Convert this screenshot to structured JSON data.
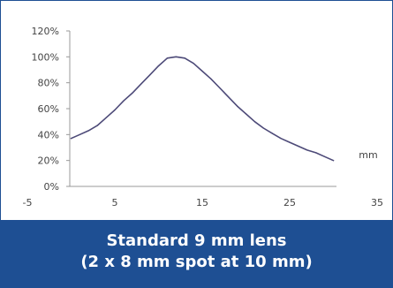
{
  "chart_data": {
    "type": "line",
    "title": "",
    "xlabel": "mm",
    "ylabel": "",
    "x_ticks": [
      "-5",
      "5",
      "15",
      "25",
      "35"
    ],
    "y_ticks": [
      "0%",
      "20%",
      "40%",
      "60%",
      "80%",
      "100%",
      "120%"
    ],
    "xlim": [
      -5,
      35
    ],
    "ylim": [
      0,
      120
    ],
    "grid": false,
    "series": [
      {
        "color": "#4d4a78",
        "x": [
          0,
          1,
          2,
          3,
          4,
          5,
          6,
          7,
          8,
          9,
          10,
          11,
          12,
          13,
          14,
          15,
          16,
          17,
          18,
          19,
          20,
          21,
          22,
          23,
          24,
          25,
          26,
          27,
          28,
          29,
          30
        ],
        "y": [
          37,
          40,
          43,
          47,
          53,
          59,
          66,
          72,
          79,
          86,
          93,
          99,
          100,
          99,
          95,
          89,
          83,
          76,
          69,
          62,
          56,
          50,
          45,
          41,
          37,
          34,
          31,
          28,
          26,
          23,
          20
        ]
      }
    ]
  },
  "caption": {
    "line1": "Standard 9 mm lens",
    "line2": "(2 x 8 mm spot at 10 mm)"
  },
  "colors": {
    "caption_background": "#1e4f93",
    "caption_text": "#ffffff",
    "line": "#4d4a78",
    "axis": "#999999"
  }
}
